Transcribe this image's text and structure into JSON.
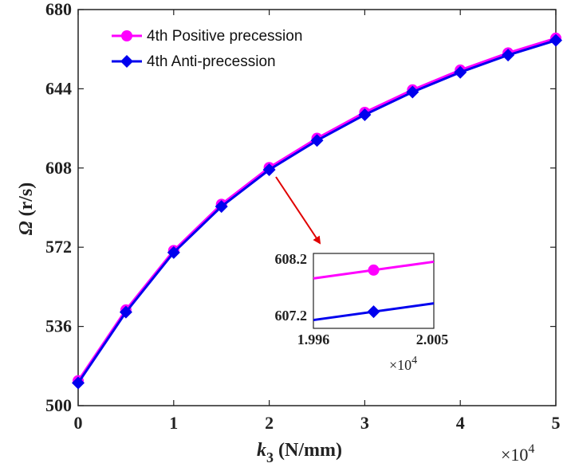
{
  "chart_data": {
    "type": "line",
    "x": [
      0,
      0.5,
      1,
      1.5,
      2,
      2.5,
      3,
      3.5,
      4,
      4.5,
      5
    ],
    "x_multiplier": "×10",
    "x_multiplier_exp": "4",
    "xlim": [
      0,
      5
    ],
    "ylim": [
      500,
      680
    ],
    "xticks": [
      0,
      1,
      2,
      3,
      4,
      5
    ],
    "yticks": [
      500,
      536,
      572,
      608,
      644,
      680
    ],
    "xlabel_main": "k",
    "xlabel_sub": "3",
    "xlabel_unit": " (N/mm)",
    "ylabel_symbol": "Ω",
    "ylabel_unit": " (r/s)",
    "legend_position": "top-left",
    "grid": false,
    "series": [
      {
        "name": "4th Positive precession",
        "color": "#ff00ff",
        "marker": "circle",
        "values": [
          511.3,
          543.5,
          570.5,
          591.5,
          608.2,
          621.5,
          633.3,
          643.5,
          652.5,
          660.3,
          667.0
        ]
      },
      {
        "name": "4th Anti-precession",
        "color": "#0000ee",
        "marker": "diamond",
        "values": [
          510.3,
          542.5,
          569.6,
          590.5,
          607.2,
          620.5,
          632.2,
          642.5,
          651.5,
          659.3,
          666.0
        ]
      }
    ],
    "inset": {
      "xticks": [
        "1.996",
        "2.005"
      ],
      "yticks": [
        "608.2",
        "607.2"
      ],
      "x_multiplier": "×10",
      "x_multiplier_exp": "4",
      "xlim": [
        1.995,
        2.005
      ],
      "ylim": [
        606.8,
        608.6
      ],
      "point_x": 2.0,
      "positive_line": [
        [
          1.995,
          608.0
        ],
        [
          2.005,
          608.4
        ]
      ],
      "anti_line": [
        [
          1.995,
          607.0
        ],
        [
          2.005,
          607.4
        ]
      ]
    }
  }
}
